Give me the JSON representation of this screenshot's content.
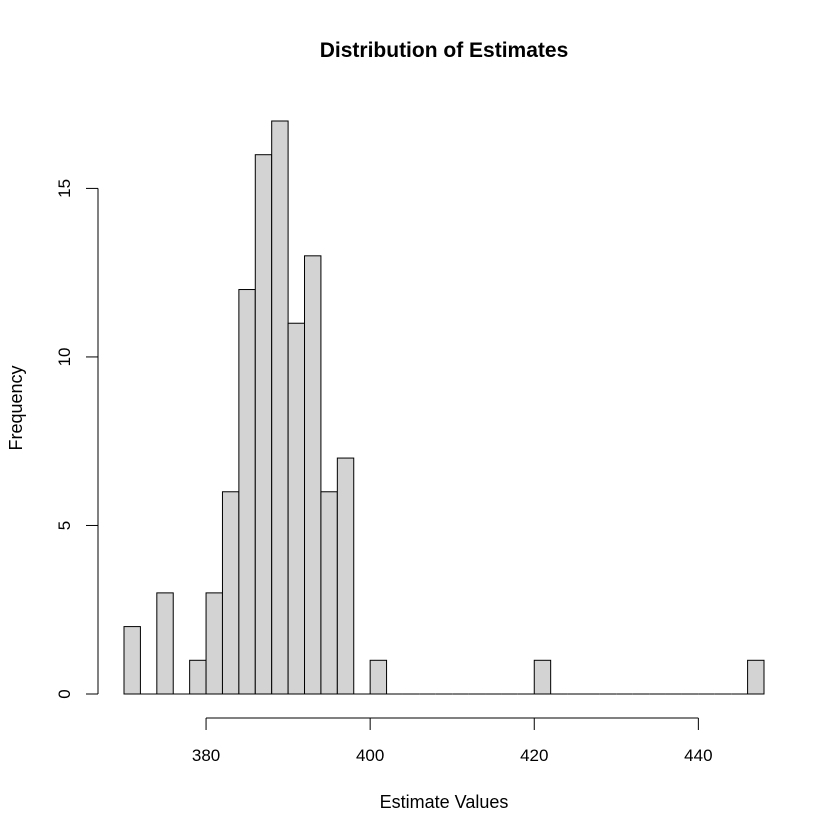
{
  "chart_data": {
    "type": "bar",
    "title": "Distribution of Estimates",
    "xlabel": "Estimate Values",
    "ylabel": "Frequency",
    "bin_width": 2,
    "bin_starts": [
      370,
      372,
      374,
      376,
      378,
      380,
      382,
      384,
      386,
      388,
      390,
      392,
      394,
      396,
      398,
      400,
      402,
      404,
      406,
      408,
      410,
      412,
      414,
      416,
      418,
      420,
      422,
      424,
      426,
      428,
      430,
      432,
      434,
      436,
      438,
      440,
      442,
      444,
      446
    ],
    "values": [
      2,
      0,
      3,
      0,
      1,
      3,
      6,
      12,
      16,
      17,
      11,
      13,
      6,
      7,
      0,
      1,
      0,
      0,
      0,
      0,
      0,
      0,
      0,
      0,
      0,
      1,
      0,
      0,
      0,
      0,
      0,
      0,
      0,
      0,
      0,
      0,
      0,
      0,
      1
    ],
    "xlim": [
      370,
      448
    ],
    "ylim": [
      0,
      17
    ],
    "x_ticks": [
      380,
      400,
      420,
      440
    ],
    "y_ticks": [
      0,
      5,
      10,
      15
    ],
    "grid": false,
    "bar_color": "#d3d3d3",
    "edge_color": "#000000"
  }
}
